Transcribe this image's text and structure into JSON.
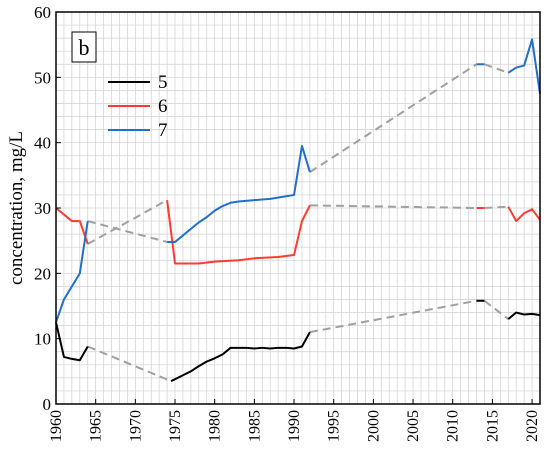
{
  "chart_data": {
    "type": "line",
    "panel_label": "b",
    "ylabel": "concentration, mg/L",
    "xlabel": "",
    "xlim": [
      1960,
      2021
    ],
    "ylim": [
      0,
      60
    ],
    "x_ticks": [
      1960,
      1965,
      1970,
      1975,
      1980,
      1985,
      1990,
      1995,
      2000,
      2005,
      2010,
      2015,
      2020
    ],
    "y_ticks": [
      0,
      10,
      20,
      30,
      40,
      50,
      60
    ],
    "grid": true,
    "legend_position": "upper-left",
    "gap_line_color": "#a0a0a0",
    "series": [
      {
        "name": "5",
        "color": "#000000",
        "segments": [
          [
            [
              1960,
              12.5
            ],
            [
              1961,
              7.2
            ],
            [
              1962,
              6.9
            ],
            [
              1963,
              6.7
            ],
            [
              1964,
              8.8
            ]
          ],
          [
            [
              1974.5,
              3.5
            ],
            [
              1975,
              3.8
            ],
            [
              1976,
              4.4
            ],
            [
              1977,
              5.0
            ],
            [
              1978,
              5.8
            ],
            [
              1979,
              6.5
            ],
            [
              1980,
              7.0
            ],
            [
              1981,
              7.6
            ],
            [
              1982,
              8.6
            ],
            [
              1983,
              8.6
            ],
            [
              1984,
              8.6
            ],
            [
              1985,
              8.5
            ],
            [
              1986,
              8.6
            ],
            [
              1987,
              8.5
            ],
            [
              1988,
              8.6
            ],
            [
              1989,
              8.6
            ],
            [
              1990,
              8.5
            ],
            [
              1991,
              8.8
            ],
            [
              1992,
              11.0
            ]
          ],
          [
            [
              2013,
              15.8
            ],
            [
              2014,
              15.8
            ]
          ],
          [
            [
              2017,
              13.0
            ],
            [
              2018,
              14.0
            ],
            [
              2019,
              13.7
            ],
            [
              2020,
              13.8
            ],
            [
              2021,
              13.6
            ]
          ]
        ],
        "gaps": [
          [
            [
              1964,
              8.8
            ],
            [
              1974.5,
              3.5
            ]
          ],
          [
            [
              1992,
              11.0
            ],
            [
              2013,
              15.8
            ]
          ],
          [
            [
              2014,
              15.8
            ],
            [
              2017,
              13.0
            ]
          ]
        ]
      },
      {
        "name": "6",
        "color": "#ff3b30",
        "segments": [
          [
            [
              1960,
              30.0
            ],
            [
              1962,
              28.0
            ],
            [
              1963,
              28.0
            ],
            [
              1964,
              24.5
            ]
          ],
          [
            [
              1974,
              31.2
            ],
            [
              1975,
              21.5
            ],
            [
              1976,
              21.5
            ],
            [
              1978,
              21.5
            ],
            [
              1980,
              21.8
            ],
            [
              1983,
              22.0
            ],
            [
              1985,
              22.3
            ],
            [
              1988,
              22.5
            ],
            [
              1990,
              22.8
            ],
            [
              1991,
              28.0
            ],
            [
              1992,
              30.4
            ]
          ],
          [
            [
              2013,
              30.0
            ],
            [
              2014,
              30.0
            ]
          ],
          [
            [
              2017,
              30.2
            ],
            [
              2018,
              28.0
            ],
            [
              2019,
              29.2
            ],
            [
              2020,
              29.8
            ],
            [
              2021,
              28.2
            ]
          ]
        ],
        "gaps": [
          [
            [
              1964,
              24.5
            ],
            [
              1974,
              31.2
            ]
          ],
          [
            [
              1992,
              30.4
            ],
            [
              2013,
              30.0
            ]
          ],
          [
            [
              2014,
              30.0
            ],
            [
              2017,
              30.2
            ]
          ]
        ]
      },
      {
        "name": "7",
        "color": "#1f6fd1",
        "segments": [
          [
            [
              1960,
              12.5
            ],
            [
              1961,
              16.0
            ],
            [
              1963,
              20.0
            ],
            [
              1964,
              28.0
            ]
          ],
          [
            [
              1974,
              24.8
            ],
            [
              1975,
              24.8
            ],
            [
              1976,
              25.8
            ],
            [
              1977,
              26.8
            ],
            [
              1978,
              27.8
            ],
            [
              1979,
              28.6
            ],
            [
              1980,
              29.6
            ],
            [
              1981,
              30.3
            ],
            [
              1982,
              30.8
            ],
            [
              1983,
              31.0
            ],
            [
              1985,
              31.2
            ],
            [
              1987,
              31.4
            ],
            [
              1989,
              31.8
            ],
            [
              1990,
              32.0
            ],
            [
              1991,
              39.5
            ],
            [
              1992,
              35.5
            ]
          ],
          [
            [
              2013,
              52.0
            ],
            [
              2014,
              52.0
            ]
          ],
          [
            [
              2017,
              50.7
            ],
            [
              2018,
              51.5
            ],
            [
              2019,
              51.8
            ],
            [
              2020,
              55.8
            ],
            [
              2021,
              47.5
            ]
          ]
        ],
        "gaps": [
          [
            [
              1964,
              28.0
            ],
            [
              1974,
              24.8
            ]
          ],
          [
            [
              1992,
              35.5
            ],
            [
              2013,
              52.0
            ]
          ],
          [
            [
              2014,
              52.0
            ],
            [
              2017,
              50.7
            ]
          ]
        ]
      }
    ]
  }
}
